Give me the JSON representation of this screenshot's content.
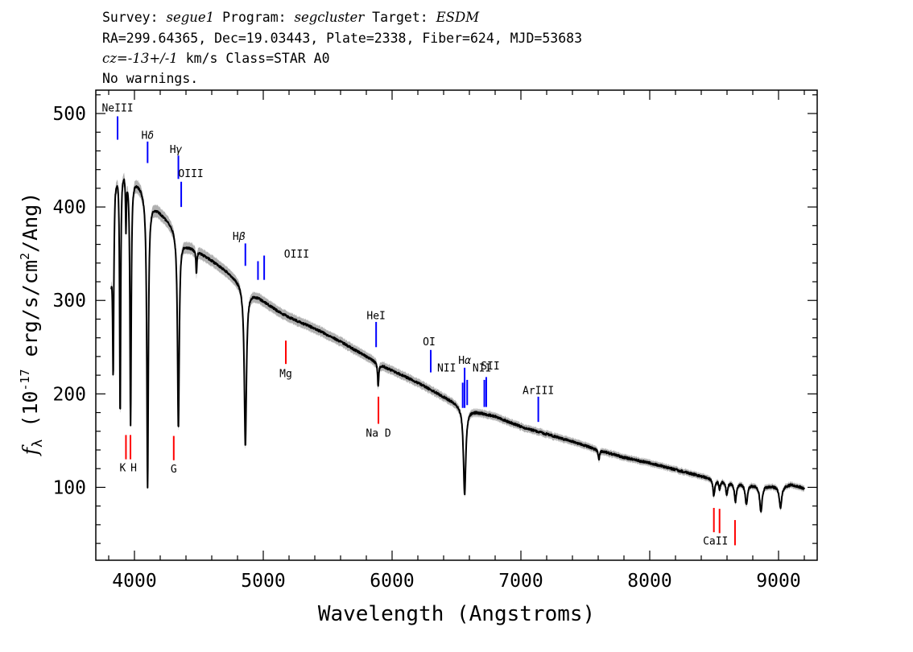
{
  "header": {
    "survey_label": "Survey: ",
    "survey": "segue1",
    "program_label": " Program: ",
    "program": "segcluster",
    "target_label": " Target: ",
    "target": "ESDM",
    "line2": "RA=299.64365, Dec=19.03443, Plate=2338, Fiber=624, MJD=53683",
    "cz": "cz=-13+/-1",
    "line3_rest": " km/s Class=STAR A0",
    "line4": "No warnings."
  },
  "chart_data": {
    "type": "line",
    "xlabel": "Wavelength (Angstroms)",
    "ylabel": "f_λ (10^-17 erg/s/cm^2/Ang)",
    "xlim": [
      3700,
      9300
    ],
    "ylim": [
      22,
      525
    ],
    "xticks": [
      4000,
      5000,
      6000,
      7000,
      8000,
      9000
    ],
    "yticks": [
      100,
      200,
      300,
      400,
      500
    ],
    "x_minor_step": 200,
    "y_minor_step": 20,
    "grid": false,
    "series": [
      {
        "line_color": "#000000",
        "error_band_color": "#b0b0b0",
        "continuum": [
          [
            3820,
            330
          ],
          [
            3850,
            430
          ],
          [
            3880,
            448
          ],
          [
            3920,
            445
          ],
          [
            3960,
            440
          ],
          [
            4000,
            432
          ],
          [
            4050,
            423
          ],
          [
            4100,
            410
          ],
          [
            4150,
            402
          ],
          [
            4200,
            395
          ],
          [
            4300,
            380
          ],
          [
            4400,
            360
          ],
          [
            4500,
            352
          ],
          [
            4600,
            343
          ],
          [
            4700,
            333
          ],
          [
            4800,
            322
          ],
          [
            4900,
            310
          ],
          [
            5000,
            300
          ],
          [
            5100,
            290
          ],
          [
            5200,
            282
          ],
          [
            5300,
            276
          ],
          [
            5400,
            270
          ],
          [
            5500,
            263
          ],
          [
            5600,
            256
          ],
          [
            5700,
            248
          ],
          [
            5800,
            240
          ],
          [
            5900,
            232
          ],
          [
            6000,
            225
          ],
          [
            6200,
            212
          ],
          [
            6400,
            197
          ],
          [
            6600,
            183
          ],
          [
            6800,
            176
          ],
          [
            7000,
            165
          ],
          [
            7200,
            157
          ],
          [
            7400,
            149
          ],
          [
            7600,
            140
          ],
          [
            7800,
            132
          ],
          [
            8000,
            126
          ],
          [
            8200,
            119
          ],
          [
            8400,
            112
          ],
          [
            8600,
            106
          ],
          [
            8800,
            103
          ],
          [
            9000,
            101
          ],
          [
            9100,
            103
          ],
          [
            9200,
            99
          ]
        ],
        "absorption_lines": [
          {
            "wavelength": 3835,
            "depth": 160,
            "width": 5
          },
          {
            "wavelength": 3889,
            "depth": 270,
            "width": 5
          },
          {
            "wavelength": 3934,
            "depth": 60,
            "width": 4
          },
          {
            "wavelength": 3970,
            "depth": 270,
            "width": 6
          },
          {
            "wavelength": 4102,
            "depth": 310,
            "width": 7
          },
          {
            "wavelength": 4341,
            "depth": 210,
            "width": 8
          },
          {
            "wavelength": 4481,
            "depth": 25,
            "width": 4
          },
          {
            "wavelength": 4861,
            "depth": 170,
            "width": 10
          },
          {
            "wavelength": 5892,
            "depth": 25,
            "width": 5
          },
          {
            "wavelength": 6563,
            "depth": 93,
            "width": 11
          },
          {
            "wavelength": 7605,
            "depth": 10,
            "width": 6
          },
          {
            "wavelength": 8498,
            "depth": 18,
            "width": 8
          },
          {
            "wavelength": 8542,
            "depth": 10,
            "width": 6
          },
          {
            "wavelength": 8598,
            "depth": 14,
            "width": 8
          },
          {
            "wavelength": 8665,
            "depth": 20,
            "width": 9
          },
          {
            "wavelength": 8750,
            "depth": 22,
            "width": 10
          },
          {
            "wavelength": 8863,
            "depth": 28,
            "width": 11
          },
          {
            "wavelength": 9015,
            "depth": 23,
            "width": 11
          }
        ]
      }
    ],
    "annotations": [
      {
        "label": "NeIII",
        "wavelength": 3869,
        "y_top": 497,
        "y_bottom": 472,
        "label_y": 502,
        "label_dx": 0,
        "color": "#0000ff",
        "italic": false
      },
      {
        "label": "Hδ",
        "wavelength": 4102,
        "y_top": 470,
        "y_bottom": 447,
        "label_y": 473,
        "label_dx": 0,
        "color": "#0000ff",
        "italic": true
      },
      {
        "label": "Hγ",
        "wavelength": 4341,
        "y_top": 455,
        "y_bottom": 430,
        "label_y": 458,
        "label_dx": -3,
        "color": "#0000ff",
        "italic": true
      },
      {
        "label": "OIII",
        "wavelength": 4363,
        "y_top": 427,
        "y_bottom": 400,
        "label_y": 432,
        "label_dx": 12,
        "color": "#0000ff",
        "italic": false
      },
      {
        "label": "Hβ",
        "wavelength": 4861,
        "y_top": 361,
        "y_bottom": 337,
        "label_y": 365,
        "label_dx": -8,
        "color": "#0000ff",
        "italic": true
      },
      {
        "label": "OIII",
        "wavelength": 4959,
        "y_top": 342,
        "y_bottom": 322,
        "label_y": 346,
        "label_dx": 48,
        "color": "#0000ff",
        "italic": false
      },
      {
        "label": "",
        "wavelength": 5007,
        "y_top": 348,
        "y_bottom": 322,
        "label_y": 0,
        "label_dx": 0,
        "color": "#0000ff",
        "italic": false
      },
      {
        "label": "HeI",
        "wavelength": 5876,
        "y_top": 277,
        "y_bottom": 250,
        "label_y": 280,
        "label_dx": 0,
        "color": "#0000ff",
        "italic": false
      },
      {
        "label": "OI",
        "wavelength": 6300,
        "y_top": 247,
        "y_bottom": 223,
        "label_y": 252,
        "label_dx": -2,
        "color": "#0000ff",
        "italic": false
      },
      {
        "label": "NII",
        "wavelength": 6548,
        "y_top": 212,
        "y_bottom": 185,
        "label_y": 224,
        "label_dx": -20,
        "color": "#0000ff",
        "italic": false
      },
      {
        "label": "Hα",
        "wavelength": 6563,
        "y_top": 228,
        "y_bottom": 185,
        "label_y": 232,
        "label_dx": 0,
        "color": "#0000ff",
        "italic": true
      },
      {
        "label": "",
        "wavelength": 6583,
        "y_top": 215,
        "y_bottom": 188,
        "label_y": 0,
        "label_dx": 0,
        "color": "#0000ff",
        "italic": false
      },
      {
        "label": "NII",
        "wavelength": 6716,
        "y_top": 215,
        "y_bottom": 186,
        "label_y": 224,
        "label_dx": -3,
        "color": "#0000ff",
        "italic": false
      },
      {
        "label": "SII",
        "wavelength": 6731,
        "y_top": 218,
        "y_bottom": 186,
        "label_y": 226,
        "label_dx": 5,
        "color": "#0000ff",
        "italic": false
      },
      {
        "label": "ArIII",
        "wavelength": 7135,
        "y_top": 197,
        "y_bottom": 170,
        "label_y": 200,
        "label_dx": 0,
        "color": "#0000ff",
        "italic": false
      },
      {
        "label": "Mg",
        "wavelength": 5175,
        "y_top": 257,
        "y_bottom": 232,
        "label_y": 218,
        "label_dx": 0,
        "color": "#ff0000",
        "italic": false
      },
      {
        "label": "Na D",
        "wavelength": 5894,
        "y_top": 197,
        "y_bottom": 168,
        "label_y": 154,
        "label_dx": 0,
        "color": "#ff0000",
        "italic": false
      },
      {
        "label": "K",
        "wavelength": 3934,
        "y_top": 156,
        "y_bottom": 130,
        "label_y": 117,
        "label_dx": -4,
        "color": "#ff0000",
        "italic": false
      },
      {
        "label": "H",
        "wavelength": 3969,
        "y_top": 156,
        "y_bottom": 130,
        "label_y": 117,
        "label_dx": 4,
        "color": "#ff0000",
        "italic": false
      },
      {
        "label": "G",
        "wavelength": 4305,
        "y_top": 155,
        "y_bottom": 129,
        "label_y": 116,
        "label_dx": 0,
        "color": "#ff0000",
        "italic": false
      },
      {
        "label": "",
        "wavelength": 8498,
        "y_top": 78,
        "y_bottom": 52,
        "label_y": 0,
        "label_dx": 0,
        "color": "#ff0000",
        "italic": false
      },
      {
        "label": "CaII",
        "wavelength": 8542,
        "y_top": 77,
        "y_bottom": 51,
        "label_y": 39,
        "label_dx": -5,
        "color": "#ff0000",
        "italic": false
      },
      {
        "label": "",
        "wavelength": 8662,
        "y_top": 65,
        "y_bottom": 38,
        "label_y": 0,
        "label_dx": 0,
        "color": "#ff0000",
        "italic": false
      }
    ]
  }
}
